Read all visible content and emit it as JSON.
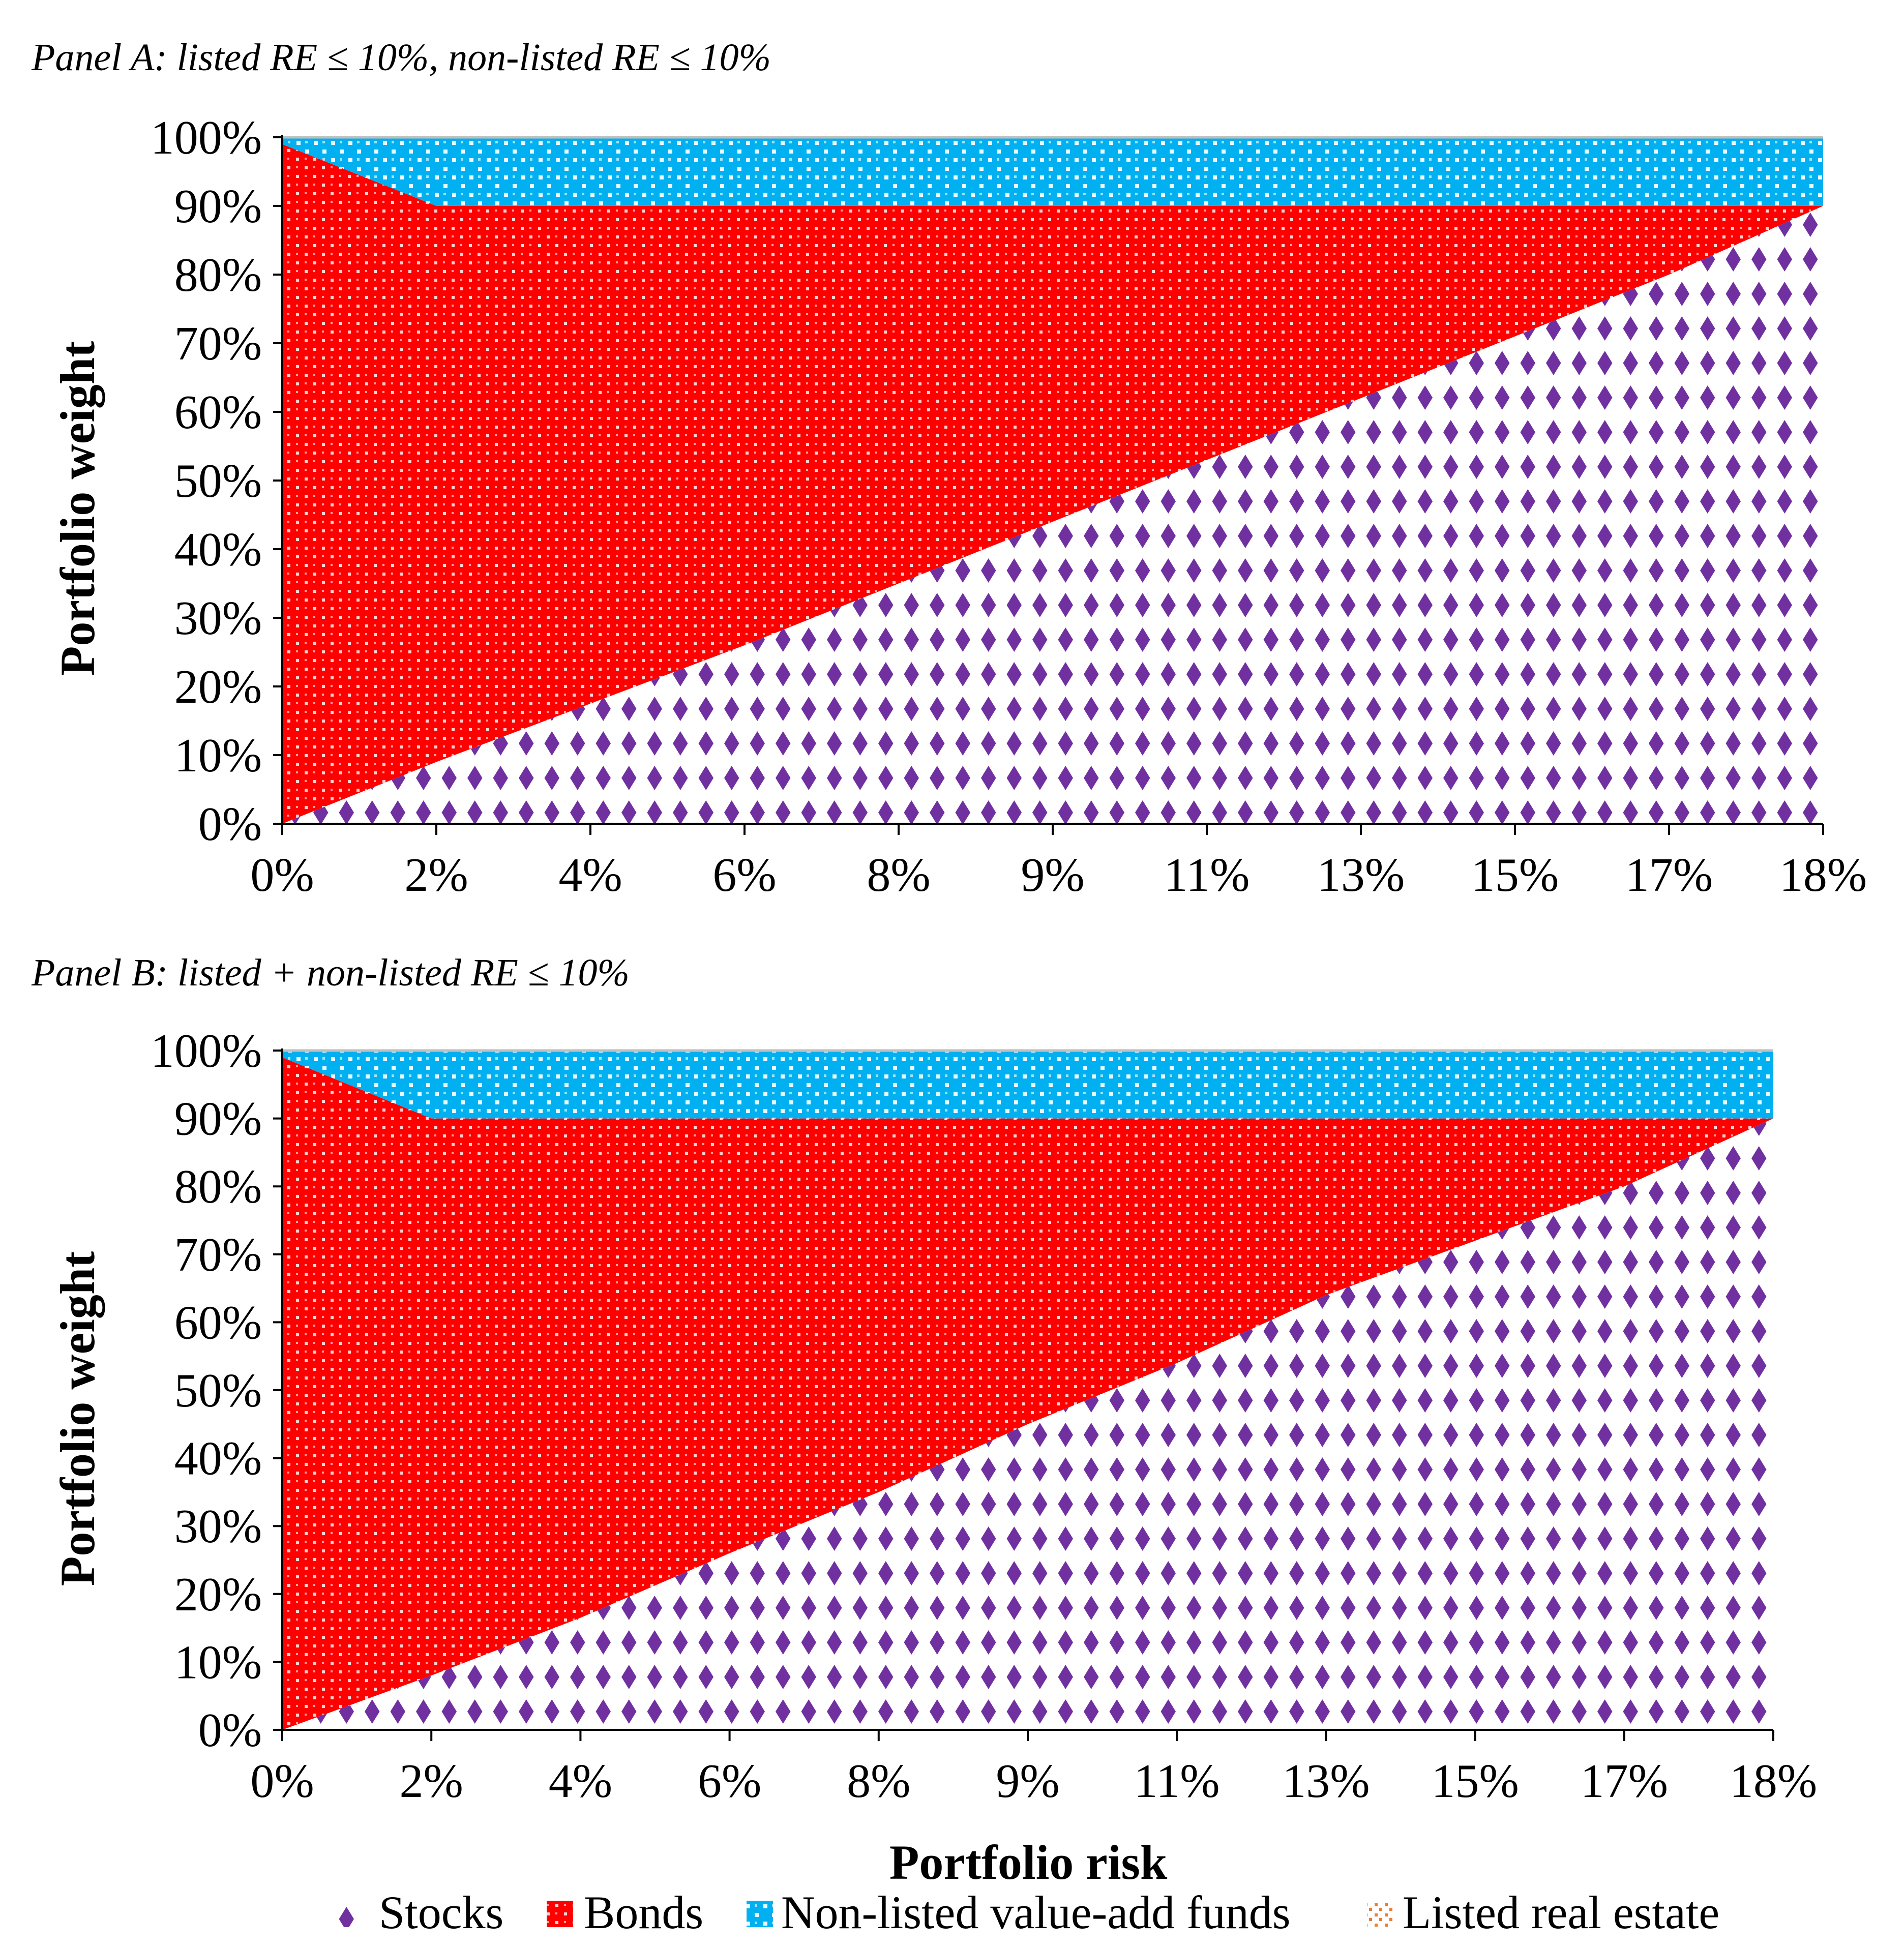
{
  "chart_data": [
    {
      "type": "area",
      "stacked": true,
      "title": "Panel A: listed RE ≤ 10%, non-listed RE ≤ 10%",
      "xlabel": "",
      "ylabel": "Portfolio weight",
      "x": [
        0,
        1,
        2,
        3,
        4,
        5,
        6,
        7,
        8,
        9,
        10
      ],
      "x_tick_labels": [
        "0%",
        "2%",
        "4%",
        "6%",
        "8%",
        "9%",
        "11%",
        "13%",
        "15%",
        "17%",
        "18%"
      ],
      "y_tick_labels": [
        "0%",
        "10%",
        "20%",
        "30%",
        "40%",
        "50%",
        "60%",
        "70%",
        "80%",
        "90%",
        "100%"
      ],
      "ylim": [
        0,
        100
      ],
      "series": [
        {
          "name": "Stocks",
          "values": [
            0,
            9,
            17.5,
            26,
            35,
            44,
            53,
            62,
            71,
            80,
            90
          ]
        },
        {
          "name": "Bonds",
          "values": [
            99,
            81,
            72.5,
            64,
            55,
            46,
            37,
            28,
            19,
            10,
            0
          ]
        },
        {
          "name": "Non-listed value-add funds",
          "values": [
            1,
            10,
            10,
            10,
            10,
            10,
            10,
            10,
            10,
            10,
            10
          ]
        },
        {
          "name": "Listed real estate",
          "values": [
            0,
            0,
            0,
            0,
            0,
            0,
            0,
            0,
            0,
            0,
            0
          ]
        }
      ]
    },
    {
      "type": "area",
      "stacked": true,
      "title": "Panel B: listed + non-listed RE ≤ 10%",
      "xlabel": "Portfolio risk",
      "ylabel": "Portfolio weight",
      "x": [
        0,
        1,
        2,
        3,
        4,
        5,
        6,
        7,
        8,
        9,
        10
      ],
      "x_tick_labels": [
        "0%",
        "2%",
        "4%",
        "6%",
        "8%",
        "9%",
        "11%",
        "13%",
        "15%",
        "17%",
        "18%"
      ],
      "y_tick_labels": [
        "0%",
        "10%",
        "20%",
        "30%",
        "40%",
        "50%",
        "60%",
        "70%",
        "80%",
        "90%",
        "100%"
      ],
      "ylim": [
        0,
        100
      ],
      "series": [
        {
          "name": "Stocks",
          "values": [
            0,
            8,
            16.5,
            26,
            35,
            45,
            54,
            64,
            72,
            80,
            90
          ]
        },
        {
          "name": "Bonds",
          "values": [
            99,
            82,
            73.5,
            64,
            55,
            45,
            36,
            26,
            18,
            10,
            0
          ]
        },
        {
          "name": "Non-listed value-add funds",
          "values": [
            1,
            10,
            10,
            10,
            10,
            10,
            10,
            10,
            10,
            10,
            10
          ]
        },
        {
          "name": "Listed real estate",
          "values": [
            0,
            0,
            0,
            0,
            0,
            0,
            0,
            0,
            0,
            0,
            0
          ]
        }
      ]
    }
  ],
  "legend": {
    "items": [
      {
        "name": "Stocks",
        "color": "#7030a0"
      },
      {
        "name": "Bonds",
        "color": "#ff0000"
      },
      {
        "name": "Non-listed value-add funds",
        "color": "#00b0f0"
      },
      {
        "name": "Listed real estate",
        "color": "#ed7d31"
      }
    ]
  },
  "colors": {
    "stocks": "#7030a0",
    "bonds": "#ff0000",
    "nonlisted": "#00b0f0",
    "listed": "#ed7d31"
  }
}
